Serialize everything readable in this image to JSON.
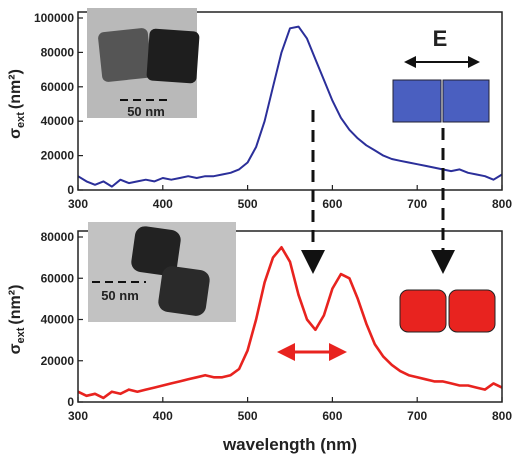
{
  "chart_data": [
    {
      "type": "line",
      "x": [
        300,
        310,
        320,
        330,
        340,
        350,
        360,
        370,
        380,
        390,
        400,
        410,
        420,
        430,
        440,
        450,
        460,
        470,
        480,
        490,
        500,
        510,
        520,
        530,
        540,
        550,
        560,
        570,
        580,
        590,
        600,
        610,
        620,
        630,
        640,
        650,
        660,
        670,
        680,
        690,
        700,
        710,
        720,
        730,
        740,
        750,
        760,
        770,
        780,
        790,
        800
      ],
      "series": [
        {
          "color": "#2b2f9a",
          "values": [
            8000,
            5000,
            3000,
            5000,
            2000,
            6000,
            4000,
            5000,
            6000,
            5000,
            7000,
            6000,
            7000,
            8000,
            7000,
            8000,
            8000,
            9000,
            10000,
            12000,
            16000,
            25000,
            40000,
            60000,
            80000,
            94000,
            95000,
            88000,
            76000,
            64000,
            52000,
            42000,
            35000,
            30000,
            26000,
            23000,
            20000,
            18000,
            17000,
            16000,
            15000,
            14000,
            13000,
            12000,
            11000,
            12000,
            10000,
            9000,
            8000,
            6000,
            9000
          ]
        }
      ],
      "xlim": [
        300,
        800
      ],
      "ylim": [
        0,
        100000
      ],
      "xticks": [
        300,
        400,
        500,
        600,
        700,
        800
      ],
      "yticks": [
        0,
        20000,
        40000,
        60000,
        80000,
        100000
      ],
      "ylabel": {
        "symbol": "σ",
        "subscript": "ext",
        "unit": "(nm²)"
      },
      "annotations": {
        "inset_scale": "50 nm",
        "field": "E"
      }
    },
    {
      "type": "line",
      "x": [
        300,
        310,
        320,
        330,
        340,
        350,
        360,
        370,
        380,
        390,
        400,
        410,
        420,
        430,
        440,
        450,
        460,
        470,
        480,
        490,
        500,
        510,
        520,
        530,
        540,
        550,
        560,
        570,
        580,
        590,
        600,
        610,
        620,
        630,
        640,
        650,
        660,
        670,
        680,
        690,
        700,
        710,
        720,
        730,
        740,
        750,
        760,
        770,
        780,
        790,
        800
      ],
      "series": [
        {
          "color": "#e8231f",
          "values": [
            5000,
            3000,
            4000,
            2000,
            5000,
            4000,
            6000,
            5000,
            6000,
            7000,
            8000,
            9000,
            10000,
            11000,
            12000,
            13000,
            12000,
            12000,
            13000,
            16000,
            25000,
            40000,
            58000,
            70000,
            75000,
            68000,
            52000,
            40000,
            35000,
            42000,
            55000,
            62000,
            60000,
            50000,
            38000,
            28000,
            22000,
            18000,
            15000,
            13000,
            12000,
            11000,
            10000,
            10000,
            9000,
            8000,
            8000,
            7000,
            6000,
            9000,
            7000
          ]
        }
      ],
      "xlim": [
        300,
        800
      ],
      "ylim": [
        0,
        80000
      ],
      "xticks": [
        300,
        400,
        500,
        600,
        700,
        800
      ],
      "yticks": [
        0,
        20000,
        40000,
        60000,
        80000
      ],
      "ylabel": {
        "symbol": "σ",
        "subscript": "ext",
        "unit": "(nm²)"
      },
      "xlabel": "wavelength (nm)",
      "annotations": {
        "inset_scale": "50 nm"
      }
    }
  ]
}
